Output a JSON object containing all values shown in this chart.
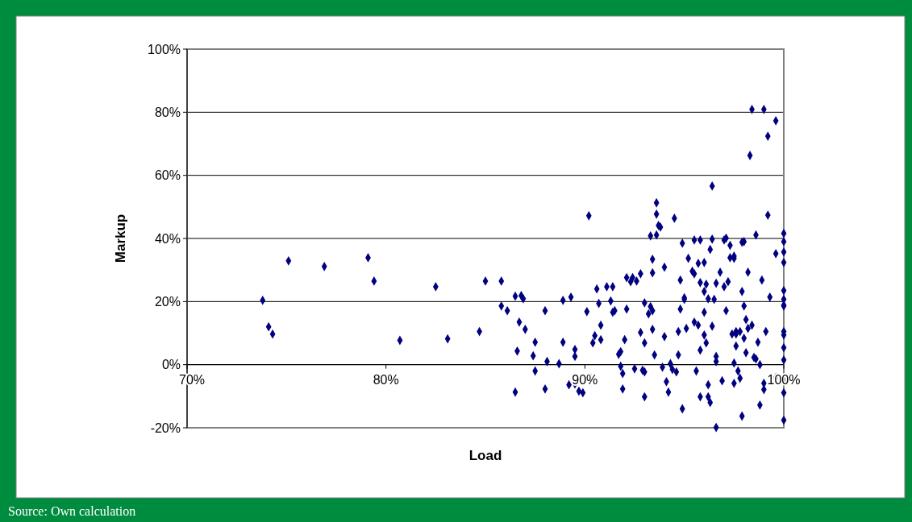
{
  "chart_data": {
    "type": "scatter",
    "xlabel": "Load",
    "ylabel": "Markup",
    "annotations": [
      "Source: Own calculation"
    ],
    "xlim": [
      70,
      100
    ],
    "ylim": [
      -20,
      100
    ],
    "xticks": [
      {
        "value": 70,
        "label": "70%"
      },
      {
        "value": 80,
        "label": "80%"
      },
      {
        "value": 90,
        "label": "90%"
      },
      {
        "value": 100,
        "label": "100%"
      }
    ],
    "yticks": [
      {
        "value": -20,
        "label": "-20%"
      },
      {
        "value": 0,
        "label": "0%"
      },
      {
        "value": 20,
        "label": "20%"
      },
      {
        "value": 40,
        "label": "40%"
      },
      {
        "value": 60,
        "label": "60%"
      },
      {
        "value": 80,
        "label": "80%"
      },
      {
        "value": 100,
        "label": "100%"
      }
    ],
    "grid": "y",
    "marker": "diamond",
    "series": [
      {
        "color": "#000080",
        "x": [
          73.8,
          74.1,
          74.3,
          75.1,
          76.9,
          79.1,
          79.4,
          80.7,
          82.5,
          83.1,
          84.7,
          85.0,
          85.8,
          85.8,
          86.1,
          86.5,
          86.8,
          86.9,
          86.6,
          86.5,
          86.7,
          87.0,
          87.4,
          87.5,
          87.5,
          88.0,
          88.1,
          88.0,
          88.9,
          88.7,
          88.9,
          89.3,
          89.5,
          89.5,
          89.2,
          89.5,
          89.7,
          89.9,
          90.2,
          90.1,
          90.3,
          90.4,
          90.5,
          90.6,
          90.7,
          90.8,
          90.8,
          91.1,
          91.4,
          91.3,
          91.4,
          91.5,
          91.7,
          91.8,
          91.8,
          91.9,
          91.9,
          92.1,
          92.0,
          92.1,
          92.3,
          92.4,
          92.6,
          92.5,
          92.8,
          92.8,
          92.9,
          93.0,
          93.0,
          93.0,
          93.0,
          93.2,
          93.3,
          93.3,
          93.4,
          93.4,
          93.4,
          93.4,
          93.5,
          93.6,
          93.6,
          93.6,
          93.7,
          93.8,
          93.9,
          94.0,
          94.0,
          94.1,
          94.2,
          94.3,
          94.4,
          94.5,
          94.6,
          94.7,
          94.9,
          94.7,
          94.9,
          94.8,
          94.8,
          95.0,
          95.1,
          95.0,
          95.2,
          95.4,
          95.5,
          95.5,
          95.6,
          95.5,
          95.7,
          95.7,
          95.8,
          95.8,
          95.8,
          95.8,
          96.0,
          96.0,
          96.0,
          96.0,
          96.1,
          96.1,
          96.2,
          96.2,
          96.2,
          96.3,
          96.3,
          96.4,
          96.4,
          96.4,
          96.5,
          96.6,
          96.6,
          96.6,
          96.6,
          96.8,
          96.9,
          97.0,
          97.0,
          97.1,
          97.1,
          97.2,
          97.3,
          97.3,
          97.4,
          97.5,
          97.5,
          97.5,
          97.5,
          97.6,
          97.6,
          97.6,
          97.7,
          97.8,
          97.8,
          97.9,
          97.9,
          97.9,
          98.0,
          98.0,
          98.1,
          98.0,
          98.2,
          98.1,
          98.2,
          98.3,
          98.4,
          98.4,
          98.5,
          98.6,
          98.7,
          98.6,
          98.8,
          98.8,
          98.9,
          99.0,
          99.0,
          99.0,
          99.1,
          99.2,
          99.2,
          99.3,
          99.6,
          99.6,
          99.6,
          100,
          100,
          100,
          100,
          100,
          100,
          100,
          100,
          100,
          100,
          100,
          100,
          100,
          100,
          100
        ],
        "values": [
          20.4,
          12.0,
          9.7,
          32.9,
          31.1,
          33.9,
          26.5,
          7.7,
          24.7,
          8.2,
          10.5,
          26.5,
          26.5,
          18.6,
          17.1,
          21.7,
          21.9,
          20.9,
          4.3,
          -8.7,
          13.5,
          11.2,
          2.8,
          7.1,
          -2.0,
          17.1,
          1.0,
          -7.7,
          20.4,
          0.3,
          7.1,
          21.4,
          2.6,
          4.8,
          -6.4,
          -6.1,
          -8.4,
          -8.9,
          47.2,
          16.8,
          -4.3,
          6.9,
          9.2,
          24.0,
          19.4,
          12.5,
          7.9,
          24.7,
          24.7,
          20.2,
          16.6,
          17.1,
          3.3,
          4.1,
          -0.5,
          -2.8,
          -7.7,
          17.6,
          7.9,
          27.6,
          26.3,
          27.6,
          26.5,
          -1.3,
          10.2,
          28.8,
          -1.8,
          -2.3,
          6.9,
          -10.2,
          19.6,
          16.1,
          18.4,
          40.8,
          33.4,
          29.1,
          11.2,
          17.1,
          3.1,
          41.1,
          51.3,
          47.7,
          44.1,
          43.6,
          -0.8,
          30.9,
          8.9,
          -5.4,
          -8.7,
          0.3,
          -1.5,
          46.4,
          -2.3,
          3.1,
          -14.0,
          10.5,
          38.5,
          26.8,
          17.6,
          20.7,
          11.5,
          21.2,
          33.7,
          29.6,
          28.8,
          39.5,
          -2.0,
          13.5,
          32.1,
          12.5,
          39.5,
          26.0,
          -10.2,
          4.6,
          23.2,
          32.4,
          16.6,
          9.4,
          6.9,
          25.5,
          20.9,
          -10.2,
          -6.4,
          -12.0,
          36.5,
          56.6,
          39.8,
          12.2,
          20.7,
          25.8,
          2.6,
          1.0,
          -19.9,
          29.3,
          -5.1,
          39.5,
          24.7,
          40.1,
          17.1,
          26.3,
          37.8,
          33.9,
          9.7,
          0.5,
          -5.9,
          34.4,
          33.7,
          10.5,
          5.9,
          9.7,
          -2.0,
          10.5,
          -4.3,
          23.2,
          -16.3,
          38.8,
          18.6,
          8.4,
          3.8,
          39.0,
          29.3,
          14.3,
          11.5,
          66.3,
          12.5,
          80.9,
          2.3,
          41.1,
          7.1,
          1.8,
          0.0,
          -12.8,
          26.8,
          -5.9,
          80.9,
          -7.9,
          10.5,
          72.4,
          47.4,
          21.4,
          35.2,
          -4.1,
          77.3,
          41.6,
          39.0,
          35.7,
          32.4,
          23.5,
          20.7,
          18.9,
          18.6,
          10.5,
          9.4,
          5.4,
          1.5,
          -4.8,
          -8.9,
          -17.6
        ]
      }
    ]
  }
}
